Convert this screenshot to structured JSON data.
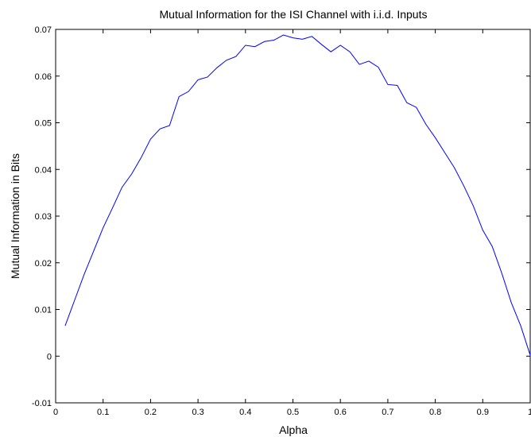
{
  "chart_data": {
    "type": "line",
    "title": "Mutual Information for the ISI Channel with i.i.d. Inputs",
    "xlabel": "Alpha",
    "ylabel": "Mutual Information in Bits",
    "x": [
      0.02,
      0.04,
      0.06,
      0.08,
      0.1,
      0.12,
      0.14,
      0.16,
      0.18,
      0.2,
      0.22,
      0.24,
      0.26,
      0.28,
      0.3,
      0.32,
      0.34,
      0.36,
      0.38,
      0.4,
      0.42,
      0.44,
      0.46,
      0.48,
      0.5,
      0.52,
      0.54,
      0.56,
      0.58,
      0.6,
      0.62,
      0.64,
      0.66,
      0.68,
      0.7,
      0.72,
      0.74,
      0.76,
      0.78,
      0.8,
      0.82,
      0.84,
      0.86,
      0.88,
      0.9,
      0.92,
      0.94,
      0.96,
      0.98,
      1
    ],
    "series": [
      {
        "color": "#0000ff",
        "values": [
          0.0065,
          0.012,
          0.0175,
          0.0225,
          0.0275,
          0.0318,
          0.0362,
          0.039,
          0.0425,
          0.0465,
          0.0487,
          0.0494,
          0.0556,
          0.0567,
          0.0592,
          0.0598,
          0.0618,
          0.0634,
          0.0642,
          0.0666,
          0.0663,
          0.0674,
          0.0677,
          0.0688,
          0.0682,
          0.0679,
          0.0685,
          0.0668,
          0.0652,
          0.0666,
          0.0652,
          0.0625,
          0.0632,
          0.0619,
          0.0582,
          0.058,
          0.0543,
          0.0533,
          0.0497,
          0.0468,
          0.0436,
          0.0404,
          0.0365,
          0.0322,
          0.027,
          0.0235,
          0.0178,
          0.0115,
          0.0065,
          0.0002
        ]
      }
    ],
    "xlim": [
      0,
      1
    ],
    "xticks": [
      0,
      0.1,
      0.2,
      0.3,
      0.4,
      0.5,
      0.6,
      0.7,
      0.8,
      0.9,
      1
    ],
    "ylim": [
      -0.01,
      0.07
    ],
    "yticks": [
      -0.01,
      0,
      0.01,
      0.02,
      0.03,
      0.04,
      0.05,
      0.06,
      0.07
    ],
    "grid": false
  }
}
